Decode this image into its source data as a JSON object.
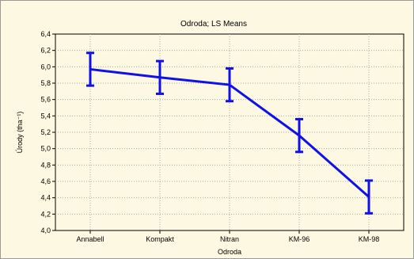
{
  "chart_data": {
    "type": "line",
    "title": "Odroda; LS Means",
    "xlabel": "Odroda",
    "ylabel": "Úrody (tha⁻¹)",
    "categories": [
      "Annabell",
      "Kompakt",
      "Nitran",
      "KM-96",
      "KM-98"
    ],
    "series": [
      {
        "values": [
          5.97,
          5.87,
          5.78,
          5.16,
          4.41
        ],
        "error_low": [
          5.77,
          5.67,
          5.58,
          4.96,
          4.21
        ],
        "error_high": [
          6.17,
          6.07,
          5.98,
          5.36,
          4.61
        ]
      }
    ],
    "ylim": [
      4.0,
      6.4
    ],
    "yticks": [
      "4,0",
      "4,2",
      "4,4",
      "4,6",
      "4,8",
      "5,0",
      "5,2",
      "5,4",
      "5,6",
      "5,8",
      "6,0",
      "6,2",
      "6,4"
    ],
    "grid": true,
    "colors": {
      "line": "#1010e8",
      "background": "#fdf8e2",
      "grid": "#a8a8a8"
    }
  }
}
